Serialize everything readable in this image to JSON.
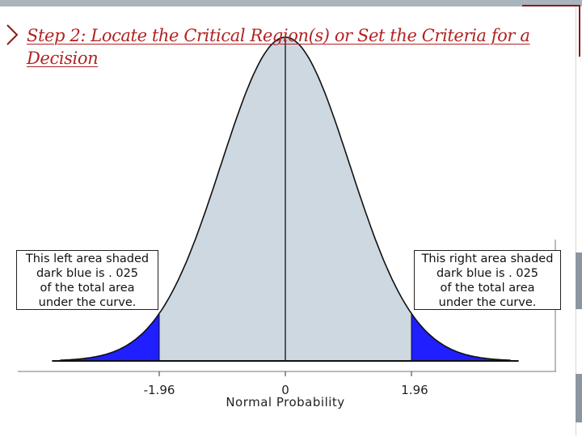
{
  "slide": {
    "title_line1": "Step 2: Locate the Critical Region(s) or Set the Criteria for a",
    "title_line2": "Decision",
    "accent_color": "#b22222"
  },
  "chart_data": {
    "type": "area",
    "curve": "standard normal density",
    "x_ticks": [
      "-1.96",
      "0",
      "1.96"
    ],
    "x_tick_values": [
      -1.96,
      0,
      1.96
    ],
    "xlabel": "Normal Probability",
    "shaded_regions": [
      {
        "from": -3.5,
        "to": -1.96,
        "area": 0.025,
        "color": "#1f1fff"
      },
      {
        "from": 1.96,
        "to": 3.5,
        "area": 0.025,
        "color": "#1f1fff"
      }
    ],
    "body_fill": "#cdd8e1",
    "xlim": [
      -3.5,
      3.5
    ],
    "center_line": 0
  },
  "callouts": {
    "left": {
      "line1": "This left area shaded",
      "line2": "dark blue is . 025",
      "line3": "of the total area",
      "line4": "under the curve."
    },
    "right": {
      "line1": "This right area shaded",
      "line2": "dark blue is . 025",
      "line3": "of the total area",
      "line4": "under the curve."
    }
  }
}
